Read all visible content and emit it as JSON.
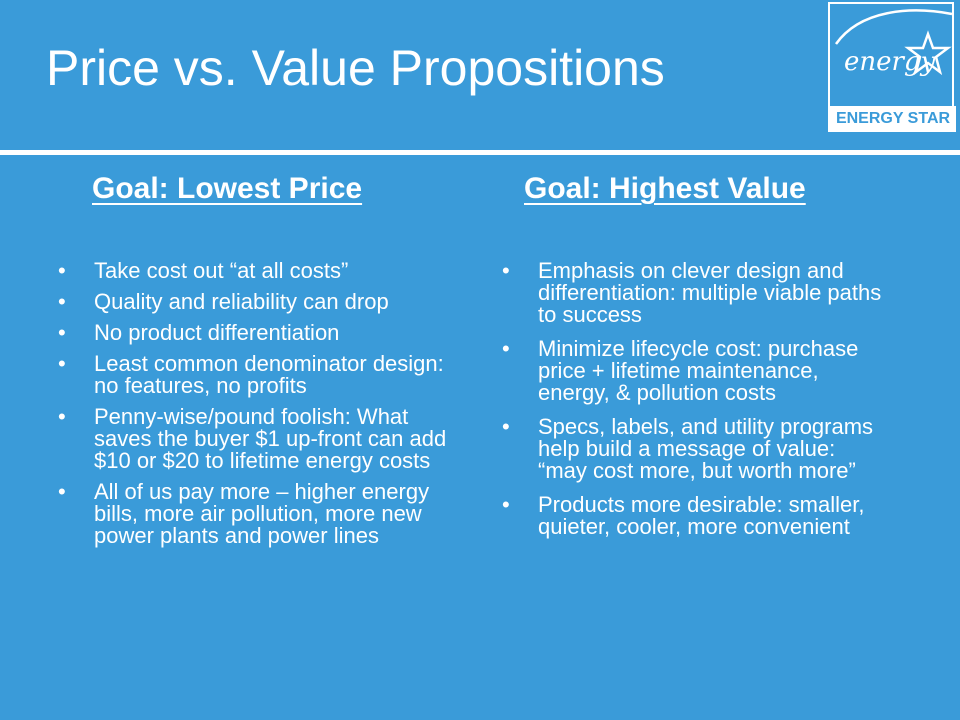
{
  "title": "Price vs. Value Propositions",
  "logo": {
    "script_text": "energy",
    "label": "ENERGY STAR",
    "icon": "energy-star-icon"
  },
  "left": {
    "heading": "Goal: Lowest Price",
    "bullets": [
      "Take cost out “at all costs”",
      "Quality and reliability can drop",
      "No product differentiation",
      "Least common denominator design: no features, no profits",
      "Penny-wise/pound foolish: What saves the buyer $1 up-front can add $10 or $20 to lifetime energy costs",
      "All of us pay more – higher energy bills, more air pollution, more new power plants and power lines"
    ]
  },
  "right": {
    "heading": "Goal: Highest Value",
    "bullets": [
      "Emphasis on clever design and differentiation: multiple viable paths to success",
      "Minimize lifecycle cost: purchase price + lifetime maintenance, energy, & pollution costs",
      "Specs, labels, and utility programs help build a message of value: “may cost more, but worth more”",
      "Products more desirable: smaller, quieter, cooler, more convenient"
    ]
  },
  "colors": {
    "background": "#3a9bd9",
    "text": "#ffffff"
  }
}
